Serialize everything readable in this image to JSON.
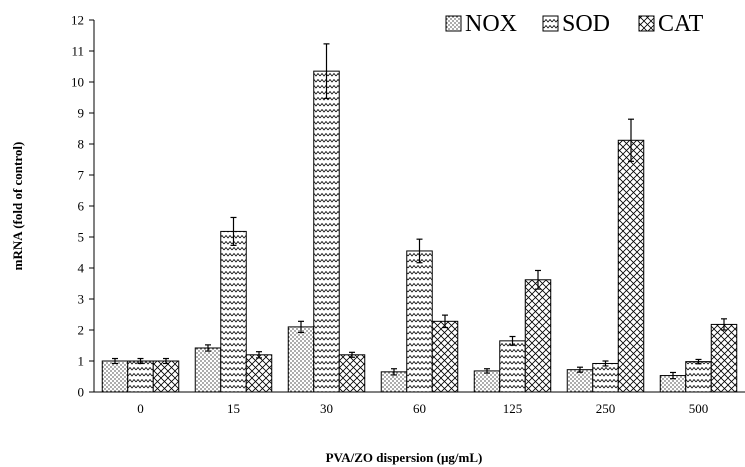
{
  "chart_data": {
    "type": "bar",
    "xlabel": "PVA/ZO dispersion (µg/mL)",
    "ylabel": "mRNA (fold of control)",
    "categories": [
      "0",
      "15",
      "30",
      "60",
      "125",
      "250",
      "500"
    ],
    "ylim": [
      0,
      12
    ],
    "yticks": [
      "0",
      "1",
      "2",
      "3",
      "4",
      "5",
      "6",
      "7",
      "8",
      "9",
      "10",
      "11",
      "12"
    ],
    "grid": false,
    "legend_position": "top-right",
    "series": [
      {
        "name": "NOX",
        "pattern": "dots",
        "values": [
          1.0,
          1.42,
          2.1,
          0.65,
          0.68,
          0.72,
          0.53
        ],
        "errors": [
          0.08,
          0.1,
          0.18,
          0.1,
          0.07,
          0.08,
          0.1
        ]
      },
      {
        "name": "SOD",
        "pattern": "zigzag",
        "values": [
          1.0,
          5.18,
          10.35,
          4.55,
          1.65,
          0.92,
          0.98
        ],
        "errors": [
          0.08,
          0.45,
          0.88,
          0.38,
          0.14,
          0.08,
          0.07
        ]
      },
      {
        "name": "CAT",
        "pattern": "crosshatch",
        "values": [
          1.0,
          1.2,
          1.2,
          2.28,
          3.62,
          8.12,
          2.18
        ],
        "errors": [
          0.08,
          0.1,
          0.08,
          0.2,
          0.3,
          0.68,
          0.18
        ]
      }
    ]
  }
}
